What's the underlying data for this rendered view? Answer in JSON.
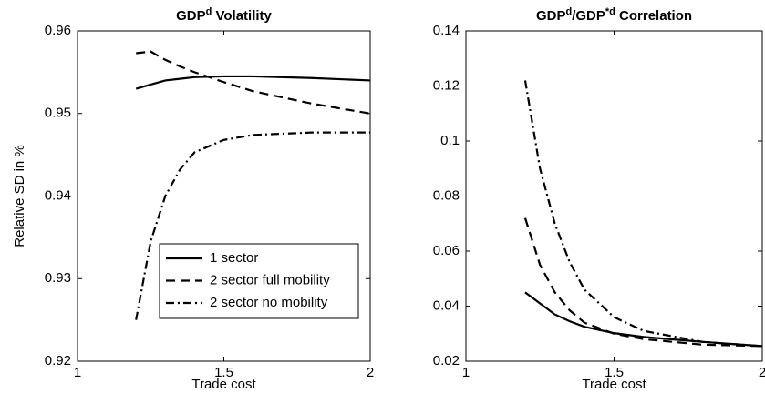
{
  "chart_data": [
    {
      "type": "line",
      "title": [
        "GDP",
        "d",
        " Volatility"
      ],
      "xlabel": "Trade cost",
      "ylabel": "Relative SD in %",
      "x": [
        1.2,
        1.25,
        1.3,
        1.35,
        1.4,
        1.5,
        1.6,
        1.8,
        2.0
      ],
      "series": [
        {
          "name": "1 sector",
          "color": "#000000",
          "style": "solid",
          "values": [
            0.953,
            0.9535,
            0.954,
            0.9542,
            0.9544,
            0.9545,
            0.9545,
            0.9543,
            0.954
          ]
        },
        {
          "name": "2 sector full mobility",
          "color": "#000000",
          "style": "dashed",
          "values": [
            0.9573,
            0.9575,
            0.9565,
            0.9557,
            0.955,
            0.9538,
            0.9527,
            0.9512,
            0.95
          ]
        },
        {
          "name": "2 sector no mobility",
          "color": "#000000",
          "style": "dashdot",
          "values": [
            0.925,
            0.9345,
            0.94,
            0.9432,
            0.9453,
            0.9468,
            0.9474,
            0.9477,
            0.9477
          ]
        }
      ],
      "xlim": [
        1,
        2
      ],
      "xticks": [
        1,
        1.5,
        2
      ],
      "ylim": [
        0.92,
        0.96
      ],
      "yticks": [
        0.92,
        0.93,
        0.94,
        0.95,
        0.96
      ],
      "legend": "lower right"
    },
    {
      "type": "line",
      "title": [
        "GDP",
        "d",
        "/GDP",
        "*d",
        " Correlation"
      ],
      "xlabel": "Trade cost",
      "x": [
        1.2,
        1.25,
        1.3,
        1.35,
        1.4,
        1.5,
        1.6,
        1.8,
        2.0
      ],
      "series": [
        {
          "color": "#000000",
          "style": "solid",
          "values": [
            0.045,
            0.041,
            0.037,
            0.0345,
            0.0325,
            0.0302,
            0.0288,
            0.027,
            0.0255
          ]
        },
        {
          "color": "#000000",
          "style": "dashed",
          "values": [
            0.072,
            0.055,
            0.045,
            0.0385,
            0.034,
            0.03,
            0.028,
            0.026,
            0.0255
          ]
        },
        {
          "color": "#000000",
          "style": "dashdot",
          "values": [
            0.122,
            0.09,
            0.07,
            0.056,
            0.046,
            0.036,
            0.031,
            0.027,
            0.0255
          ]
        }
      ],
      "xlim": [
        1,
        2
      ],
      "xticks": [
        1,
        1.5,
        2
      ],
      "ylim": [
        0.02,
        0.14
      ],
      "yticks": [
        0.02,
        0.04,
        0.06,
        0.08,
        0.1,
        0.12,
        0.14
      ]
    }
  ]
}
